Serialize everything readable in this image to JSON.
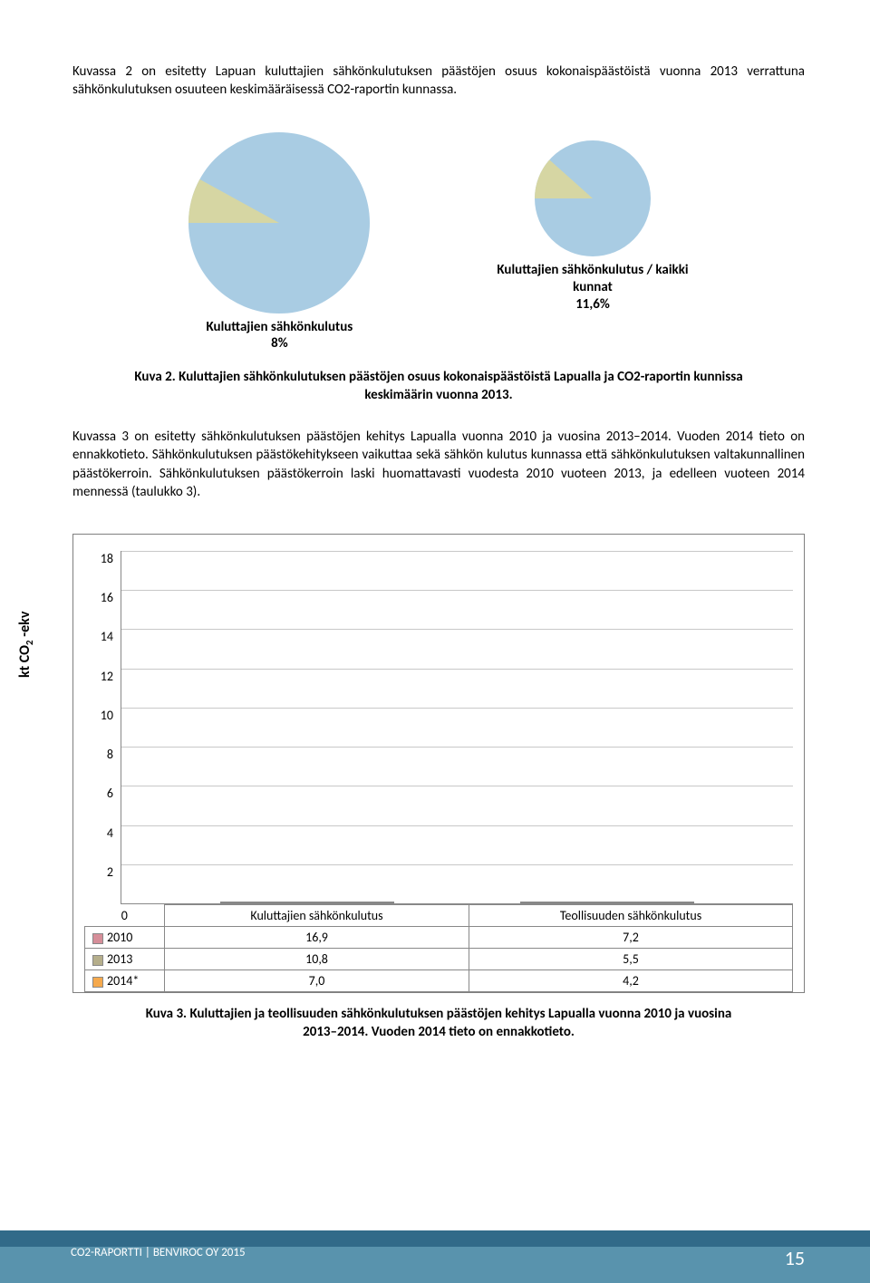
{
  "paragraphs": {
    "p1": "Kuvassa 2 on esitetty Lapuan kuluttajien sähkönkulutuksen päästöjen osuus kokonaispäästöistä vuonna 2013 verrattuna sähkönkulutuksen osuuteen keskimääräisessä CO2-raportin kunnassa.",
    "p2": "Kuvassa 3 on esitetty sähkönkulutuksen päästöjen kehitys Lapualla vuonna 2010 ja vuosina 2013–2014. Vuoden 2014 tieto on ennakkotieto. Sähkönkulutuksen päästökehitykseen vaikuttaa sekä sähkön kulutus kunnassa että sähkönkulutuksen valtakunnallinen päästökerroin. Sähkönkulutuksen päästökerroin laski huomattavasti vuodesta 2010 vuoteen 2013, ja edelleen vuoteen 2014 mennessä (taulukko 3)."
  },
  "pies": {
    "left": {
      "label_line1": "Kuluttajien sähkönkulutus",
      "label_line2": "8%",
      "slice_percent": 8,
      "main_color": "#a9cce3",
      "slice_color": "#d6d6a3"
    },
    "right": {
      "label_line1": "Kuluttajien sähkönkulutus / kaikki",
      "label_line2": "kunnat",
      "label_line3": "11,6%",
      "slice_percent": 11.6,
      "main_color": "#a9cce3",
      "slice_color": "#d6d6a3"
    }
  },
  "captions": {
    "c2a": "Kuva 2. Kuluttajien sähkönkulutuksen päästöjen osuus kokonaispäästöistä Lapualla ja CO2-raportin kunnissa",
    "c2b": "keskimäärin vuonna 2013.",
    "c3a": "Kuva 3. Kuluttajien ja teollisuuden sähkönkulutuksen päästöjen kehitys Lapualla vuonna 2010 ja vuosina",
    "c3b": "2013–2014. Vuoden 2014 tieto on ennakkotieto."
  },
  "bar_chart": {
    "y_label": "kt CO₂ -ekv",
    "y_ticks": [
      "18",
      "16",
      "14",
      "12",
      "10",
      "8",
      "6",
      "4",
      "2",
      "0"
    ],
    "y_max": 18,
    "grid_color": "#c8c8c8",
    "background": "#ffffff",
    "categories": [
      "Kuluttajien sähkönkulutus",
      "Teollisuuden sähkönkulutus"
    ],
    "series": [
      {
        "name": "2010",
        "color": "#d68e99",
        "values": [
          16.9,
          7.2
        ]
      },
      {
        "name": "2013",
        "color": "#b5ae8b",
        "values": [
          10.8,
          5.5
        ]
      },
      {
        "name": "2014*",
        "color": "#f5a94d",
        "values": [
          7.0,
          4.2
        ]
      }
    ],
    "table": {
      "rows": [
        {
          "label": "2010",
          "c1": "16,9",
          "c2": "7,2"
        },
        {
          "label": "2013",
          "c1": "10,8",
          "c2": "5,5"
        },
        {
          "label": "2014*",
          "c1": "7,0",
          "c2": "4,2"
        }
      ]
    }
  },
  "footer": {
    "text": "CO2-RAPORTTI | BENVIROC OY 2015",
    "page": "15"
  }
}
